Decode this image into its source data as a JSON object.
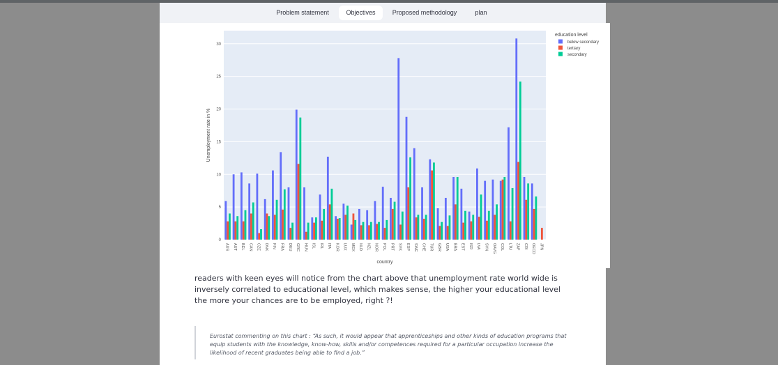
{
  "tabs": [
    {
      "label": "Problem statement",
      "active": false
    },
    {
      "label": "Objectives",
      "active": true
    },
    {
      "label": "Proposed methodology",
      "active": false
    },
    {
      "label": "plan",
      "active": false
    }
  ],
  "colors": {
    "below_secondary": "#636efa",
    "tertiary": "#ef553b",
    "secondary": "#00cc96",
    "plot_bg": "#e5ecf6"
  },
  "chart_data": {
    "type": "bar",
    "xlabel": "country",
    "ylabel": "Unemployment rate in %",
    "ylim": [
      0,
      32
    ],
    "yticks": [
      0,
      5,
      10,
      15,
      20,
      25,
      30
    ],
    "grid": true,
    "legend_title": "education level",
    "legend_position": "top-right",
    "categories": [
      "AUS",
      "AUT",
      "BEL",
      "CAN",
      "CZE",
      "DNK",
      "FIN",
      "FRA",
      "DEU",
      "GRC",
      "HUN",
      "ISL",
      "IRL",
      "ITA",
      "KOR",
      "LUX",
      "MEX",
      "NLD",
      "NZL",
      "NOR",
      "POL",
      "PRT",
      "SVK",
      "ESP",
      "SWE",
      "CHE",
      "TUR",
      "GBR",
      "USA",
      "BRA",
      "EST",
      "ISR",
      "LVA",
      "SVN",
      "OAVG",
      "COL",
      "LTU",
      "ZAF",
      "CRI",
      "OECD",
      "JPN"
    ],
    "series": [
      {
        "name": "below secondary",
        "values": [
          5.9,
          10.0,
          10.3,
          8.6,
          10.1,
          6.2,
          10.6,
          13.4,
          8.0,
          19.9,
          8.0,
          3.4,
          6.9,
          12.7,
          3.6,
          5.5,
          2.3,
          4.7,
          4.5,
          5.9,
          8.1,
          6.4,
          27.8,
          18.8,
          14.0,
          8.0,
          12.3,
          4.8,
          6.4,
          9.6,
          7.8,
          4.3,
          10.9,
          9.0,
          9.2,
          9.0,
          17.2,
          30.8,
          9.6,
          8.6,
          null
        ]
      },
      {
        "name": "tertiary",
        "values": [
          2.8,
          2.8,
          2.8,
          4.0,
          1.0,
          4.0,
          3.8,
          4.6,
          1.8,
          11.6,
          1.2,
          2.6,
          2.9,
          5.4,
          3.2,
          3.8,
          4.0,
          2.2,
          2.2,
          2.4,
          1.8,
          4.7,
          2.3,
          8.0,
          3.4,
          3.2,
          10.6,
          2.1,
          2.1,
          5.4,
          2.6,
          2.8,
          3.5,
          2.9,
          3.8,
          9.2,
          2.8,
          11.9,
          6.1,
          4.7,
          1.8
        ]
      },
      {
        "name": "secondary",
        "values": [
          4.0,
          3.6,
          4.5,
          5.7,
          1.6,
          3.6,
          6.1,
          7.7,
          2.6,
          18.7,
          2.6,
          3.4,
          4.7,
          7.8,
          3.3,
          5.2,
          3.0,
          2.7,
          2.7,
          2.7,
          3.0,
          5.8,
          4.3,
          12.6,
          3.8,
          3.8,
          11.8,
          2.7,
          3.7,
          9.6,
          4.4,
          3.8,
          6.9,
          4.4,
          5.4,
          9.6,
          7.9,
          24.2,
          8.6,
          6.6,
          null
        ]
      }
    ]
  },
  "paragraph": "readers with keen eyes will notice from the chart above that unemployment rate world wide is inversely correlated to educational level, which makes sense, the higher your educational level the more your chances are to be employed, right ?!",
  "quote": "Eurostat commenting on this chart : “As such, it would appear that apprenticeships and other kinds of education programs that equip students with the knowledge, know-how, skills and/or competences required for a particular occupation increase the likelihood of recent graduates being able to find a job.”"
}
